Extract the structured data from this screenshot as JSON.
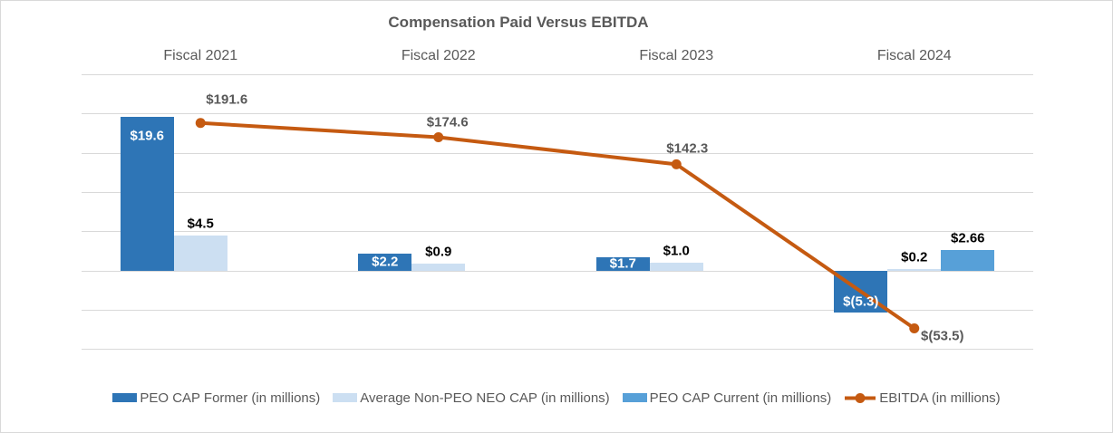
{
  "title": "Compensation Paid Versus EBITDA",
  "chart_data": {
    "type": "combo",
    "categories": [
      "Fiscal 2021",
      "Fiscal 2022",
      "Fiscal 2023",
      "Fiscal 2024"
    ],
    "series": [
      {
        "id": "peo-cap-former",
        "name": "PEO CAP Former (in millions)",
        "chart": "bar",
        "color": "#2E75B6",
        "values": [
          19.6,
          2.2,
          1.7,
          -5.3
        ],
        "data_labels": [
          "$19.6",
          "$2.2",
          "$1.7",
          "$(5.3)"
        ],
        "label_style": "inside-white"
      },
      {
        "id": "avg-non-peo-neo-cap",
        "name": "Average Non-PEO NEO CAP (in millions)",
        "chart": "bar",
        "color": "#CCDFF2",
        "values": [
          4.5,
          0.9,
          1.0,
          0.2
        ],
        "data_labels": [
          "$4.5",
          "$0.9",
          "$1.0",
          "$0.2"
        ],
        "label_style": "outside-black"
      },
      {
        "id": "peo-cap-current",
        "name": "PEO CAP Current (in millions)",
        "chart": "bar",
        "color": "#57A0D8",
        "values": [
          null,
          null,
          null,
          2.66
        ],
        "data_labels": [
          null,
          null,
          null,
          "$2.66"
        ],
        "label_style": "outside-black"
      },
      {
        "id": "ebitda",
        "name": "EBITDA (in millions)",
        "chart": "line",
        "color": "#C55A11",
        "values": [
          191.6,
          174.6,
          142.3,
          -53.5
        ],
        "data_labels": [
          "$191.6",
          "$174.6",
          "$142.3",
          "$(53.5)"
        ],
        "label_style": "outside-gray"
      }
    ],
    "primary_ylim": [
      -10,
      25
    ],
    "primary_grid_step": 5,
    "secondary_axis_visible": false,
    "axis_tick_labels_visible": false,
    "grid": true,
    "legend_position": "bottom"
  },
  "colors": {
    "grid": "#D9D9D9",
    "border": "#D9D9D9",
    "axis_text": "#595959",
    "title_text": "#595959",
    "label_black": "#000000",
    "label_white": "#FFFFFF",
    "label_gray": "#595959"
  }
}
